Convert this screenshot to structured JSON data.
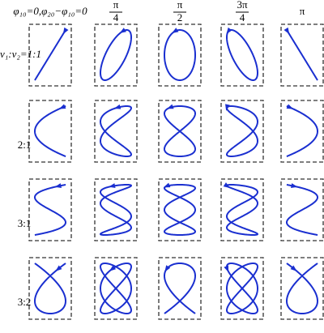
{
  "header": {
    "columns": [
      {
        "text": "φ₁₀=0,φ₂₀−φ₁₀=0"
      },
      {
        "numerator": "π",
        "denominator": "4"
      },
      {
        "numerator": "π",
        "denominator": "2"
      },
      {
        "numerator": "3π",
        "denominator": "4"
      },
      {
        "text": "π"
      }
    ]
  },
  "rows": [
    {
      "label": "ν₁:ν₂=1:1"
    },
    {
      "label": "2:1"
    },
    {
      "label": "3:1"
    },
    {
      "label": "3:2"
    }
  ]
}
